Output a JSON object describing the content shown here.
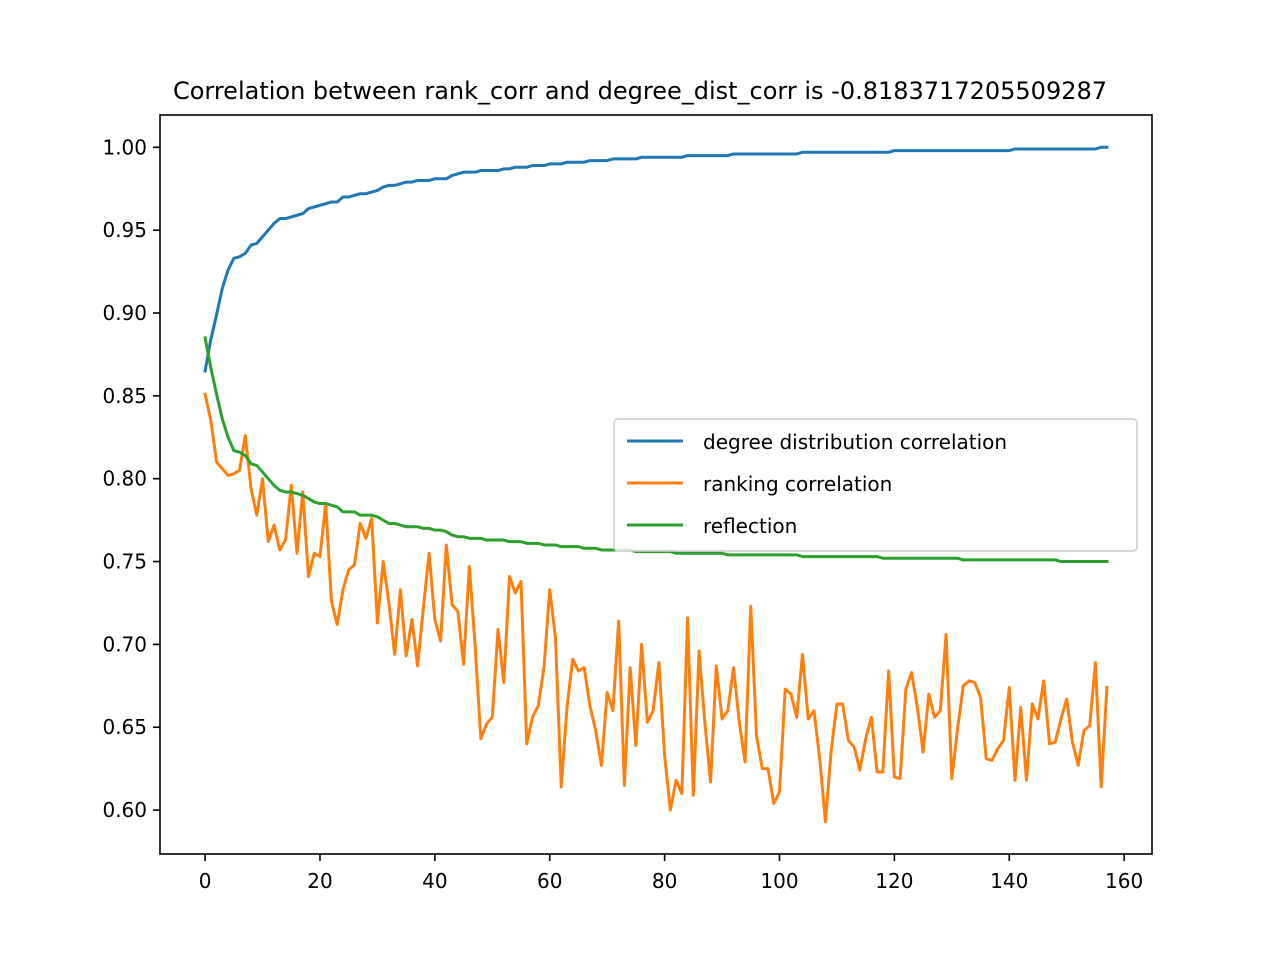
{
  "chart_data": {
    "type": "line",
    "title": "Correlation between rank_corr and degree_dist_corr is -0.8183717205509287",
    "xlabel": "",
    "ylabel": "",
    "xlim": [
      -7.85,
      164.85
    ],
    "ylim": [
      0.5735,
      1.0195
    ],
    "xticks": [
      0,
      20,
      40,
      60,
      80,
      100,
      120,
      140,
      160
    ],
    "yticks": [
      0.6,
      0.65,
      0.7,
      0.75,
      0.8,
      0.85,
      0.9,
      0.95,
      1.0
    ],
    "xtick_labels": [
      "0",
      "20",
      "40",
      "60",
      "80",
      "100",
      "120",
      "140",
      "160"
    ],
    "ytick_labels": [
      "0.60",
      "0.65",
      "0.70",
      "0.75",
      "0.80",
      "0.85",
      "0.90",
      "0.95",
      "1.00"
    ],
    "grid": false,
    "legend_position": "center-right",
    "x": [
      0,
      1,
      2,
      3,
      4,
      5,
      6,
      7,
      8,
      9,
      10,
      11,
      12,
      13,
      14,
      15,
      16,
      17,
      18,
      19,
      20,
      21,
      22,
      23,
      24,
      25,
      26,
      27,
      28,
      29,
      30,
      31,
      32,
      33,
      34,
      35,
      36,
      37,
      38,
      39,
      40,
      41,
      42,
      43,
      44,
      45,
      46,
      47,
      48,
      49,
      50,
      51,
      52,
      53,
      54,
      55,
      56,
      57,
      58,
      59,
      60,
      61,
      62,
      63,
      64,
      65,
      66,
      67,
      68,
      69,
      70,
      71,
      72,
      73,
      74,
      75,
      76,
      77,
      78,
      79,
      80,
      81,
      82,
      83,
      84,
      85,
      86,
      87,
      88,
      89,
      90,
      91,
      92,
      93,
      94,
      95,
      96,
      97,
      98,
      99,
      100,
      101,
      102,
      103,
      104,
      105,
      106,
      107,
      108,
      109,
      110,
      111,
      112,
      113,
      114,
      115,
      116,
      117,
      118,
      119,
      120,
      121,
      122,
      123,
      124,
      125,
      126,
      127,
      128,
      129,
      130,
      131,
      132,
      133,
      134,
      135,
      136,
      137,
      138,
      139,
      140,
      141,
      142,
      143,
      144,
      145,
      146,
      147,
      148,
      149,
      150,
      151,
      152,
      153,
      154,
      155,
      156,
      157
    ],
    "series": [
      {
        "name": "degree distribution correlation",
        "color": "#1f77b4",
        "values": [
          0.865,
          0.884,
          0.899,
          0.915,
          0.926,
          0.933,
          0.934,
          0.936,
          0.941,
          0.942,
          0.946,
          0.95,
          0.954,
          0.957,
          0.957,
          0.958,
          0.959,
          0.96,
          0.963,
          0.964,
          0.965,
          0.966,
          0.967,
          0.967,
          0.97,
          0.97,
          0.971,
          0.972,
          0.972,
          0.973,
          0.974,
          0.976,
          0.977,
          0.977,
          0.978,
          0.979,
          0.979,
          0.98,
          0.98,
          0.98,
          0.981,
          0.981,
          0.981,
          0.983,
          0.984,
          0.985,
          0.985,
          0.985,
          0.986,
          0.986,
          0.986,
          0.986,
          0.987,
          0.987,
          0.988,
          0.988,
          0.988,
          0.989,
          0.989,
          0.989,
          0.99,
          0.99,
          0.99,
          0.991,
          0.991,
          0.991,
          0.991,
          0.992,
          0.992,
          0.992,
          0.992,
          0.993,
          0.993,
          0.993,
          0.993,
          0.993,
          0.994,
          0.994,
          0.994,
          0.994,
          0.994,
          0.994,
          0.994,
          0.994,
          0.995,
          0.995,
          0.995,
          0.995,
          0.995,
          0.995,
          0.995,
          0.995,
          0.996,
          0.996,
          0.996,
          0.996,
          0.996,
          0.996,
          0.996,
          0.996,
          0.996,
          0.996,
          0.996,
          0.996,
          0.997,
          0.997,
          0.997,
          0.997,
          0.997,
          0.997,
          0.997,
          0.997,
          0.997,
          0.997,
          0.997,
          0.997,
          0.997,
          0.997,
          0.997,
          0.997,
          0.998,
          0.998,
          0.998,
          0.998,
          0.998,
          0.998,
          0.998,
          0.998,
          0.998,
          0.998,
          0.998,
          0.998,
          0.998,
          0.998,
          0.998,
          0.998,
          0.998,
          0.998,
          0.998,
          0.998,
          0.998,
          0.999,
          0.999,
          0.999,
          0.999,
          0.999,
          0.999,
          0.999,
          0.999,
          0.999,
          0.999,
          0.999,
          0.999,
          0.999,
          0.999,
          0.999,
          1.0,
          1.0
        ]
      },
      {
        "name": "ranking correlation",
        "color": "#ff7f0e",
        "values": [
          0.851,
          0.835,
          0.81,
          0.806,
          0.802,
          0.803,
          0.805,
          0.826,
          0.794,
          0.778,
          0.8,
          0.762,
          0.772,
          0.757,
          0.763,
          0.796,
          0.755,
          0.792,
          0.741,
          0.755,
          0.753,
          0.785,
          0.726,
          0.712,
          0.733,
          0.745,
          0.748,
          0.773,
          0.764,
          0.776,
          0.713,
          0.75,
          0.725,
          0.694,
          0.733,
          0.693,
          0.715,
          0.687,
          0.722,
          0.755,
          0.715,
          0.702,
          0.76,
          0.724,
          0.72,
          0.688,
          0.747,
          0.7,
          0.643,
          0.652,
          0.656,
          0.709,
          0.677,
          0.741,
          0.731,
          0.738,
          0.64,
          0.656,
          0.663,
          0.686,
          0.733,
          0.704,
          0.614,
          0.662,
          0.691,
          0.684,
          0.686,
          0.663,
          0.648,
          0.627,
          0.671,
          0.66,
          0.714,
          0.615,
          0.686,
          0.639,
          0.7,
          0.653,
          0.66,
          0.689,
          0.633,
          0.6,
          0.618,
          0.61,
          0.716,
          0.609,
          0.696,
          0.653,
          0.617,
          0.687,
          0.655,
          0.66,
          0.686,
          0.653,
          0.629,
          0.723,
          0.645,
          0.625,
          0.625,
          0.604,
          0.611,
          0.673,
          0.67,
          0.656,
          0.694,
          0.655,
          0.66,
          0.631,
          0.593,
          0.636,
          0.664,
          0.664,
          0.642,
          0.638,
          0.624,
          0.643,
          0.656,
          0.623,
          0.623,
          0.684,
          0.62,
          0.619,
          0.673,
          0.683,
          0.662,
          0.635,
          0.67,
          0.656,
          0.66,
          0.706,
          0.619,
          0.649,
          0.675,
          0.678,
          0.677,
          0.668,
          0.631,
          0.63,
          0.637,
          0.642,
          0.674,
          0.618,
          0.662,
          0.618,
          0.664,
          0.655,
          0.678,
          0.64,
          0.641,
          0.655,
          0.667,
          0.641,
          0.627,
          0.648,
          0.651,
          0.689,
          0.614,
          0.674
        ]
      },
      {
        "name": "reflection",
        "color": "#2ca02c",
        "values": [
          0.885,
          0.867,
          0.851,
          0.836,
          0.825,
          0.817,
          0.816,
          0.814,
          0.809,
          0.808,
          0.804,
          0.8,
          0.796,
          0.793,
          0.792,
          0.792,
          0.791,
          0.79,
          0.788,
          0.786,
          0.785,
          0.785,
          0.784,
          0.783,
          0.78,
          0.78,
          0.78,
          0.778,
          0.778,
          0.778,
          0.777,
          0.775,
          0.773,
          0.773,
          0.772,
          0.771,
          0.771,
          0.771,
          0.77,
          0.77,
          0.769,
          0.769,
          0.768,
          0.766,
          0.765,
          0.765,
          0.764,
          0.764,
          0.764,
          0.763,
          0.763,
          0.763,
          0.763,
          0.762,
          0.762,
          0.762,
          0.761,
          0.761,
          0.761,
          0.76,
          0.76,
          0.76,
          0.759,
          0.759,
          0.759,
          0.759,
          0.758,
          0.758,
          0.758,
          0.757,
          0.757,
          0.757,
          0.757,
          0.757,
          0.757,
          0.756,
          0.756,
          0.756,
          0.756,
          0.756,
          0.756,
          0.756,
          0.755,
          0.755,
          0.755,
          0.755,
          0.755,
          0.755,
          0.755,
          0.755,
          0.755,
          0.754,
          0.754,
          0.754,
          0.754,
          0.754,
          0.754,
          0.754,
          0.754,
          0.754,
          0.754,
          0.754,
          0.754,
          0.754,
          0.753,
          0.753,
          0.753,
          0.753,
          0.753,
          0.753,
          0.753,
          0.753,
          0.753,
          0.753,
          0.753,
          0.753,
          0.753,
          0.753,
          0.752,
          0.752,
          0.752,
          0.752,
          0.752,
          0.752,
          0.752,
          0.752,
          0.752,
          0.752,
          0.752,
          0.752,
          0.752,
          0.752,
          0.751,
          0.751,
          0.751,
          0.751,
          0.751,
          0.751,
          0.751,
          0.751,
          0.751,
          0.751,
          0.751,
          0.751,
          0.751,
          0.751,
          0.751,
          0.751,
          0.751,
          0.75,
          0.75,
          0.75,
          0.75,
          0.75,
          0.75,
          0.75,
          0.75,
          0.75
        ]
      }
    ]
  }
}
